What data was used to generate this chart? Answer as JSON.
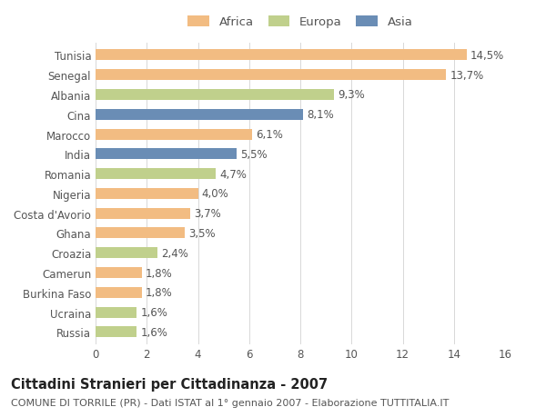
{
  "categories": [
    "Tunisia",
    "Senegal",
    "Albania",
    "Cina",
    "Marocco",
    "India",
    "Romania",
    "Nigeria",
    "Costa d'Avorio",
    "Ghana",
    "Croazia",
    "Camerun",
    "Burkina Faso",
    "Ucraina",
    "Russia"
  ],
  "values": [
    14.5,
    13.7,
    9.3,
    8.1,
    6.1,
    5.5,
    4.7,
    4.0,
    3.7,
    3.5,
    2.4,
    1.8,
    1.8,
    1.6,
    1.6
  ],
  "labels": [
    "14,5%",
    "13,7%",
    "9,3%",
    "8,1%",
    "6,1%",
    "5,5%",
    "4,7%",
    "4,0%",
    "3,7%",
    "3,5%",
    "2,4%",
    "1,8%",
    "1,8%",
    "1,6%",
    "1,6%"
  ],
  "continents": [
    "Africa",
    "Africa",
    "Europa",
    "Asia",
    "Africa",
    "Asia",
    "Europa",
    "Africa",
    "Africa",
    "Africa",
    "Europa",
    "Africa",
    "Africa",
    "Europa",
    "Europa"
  ],
  "colors": {
    "Africa": "#F2BC82",
    "Europa": "#C0D08C",
    "Asia": "#6A8DB5"
  },
  "legend_labels": [
    "Africa",
    "Europa",
    "Asia"
  ],
  "legend_colors": [
    "#F2BC82",
    "#C0D08C",
    "#6A8DB5"
  ],
  "xlim": [
    0,
    16
  ],
  "xticks": [
    0,
    2,
    4,
    6,
    8,
    10,
    12,
    14,
    16
  ],
  "title": "Cittadini Stranieri per Cittadinanza - 2007",
  "subtitle": "COMUNE DI TORRILE (PR) - Dati ISTAT al 1° gennaio 2007 - Elaborazione TUTTITALIA.IT",
  "bg_color": "#ffffff",
  "grid_color": "#d8d8d8",
  "bar_height": 0.55,
  "label_fontsize": 8.5,
  "tick_fontsize": 8.5,
  "title_fontsize": 10.5,
  "subtitle_fontsize": 8
}
